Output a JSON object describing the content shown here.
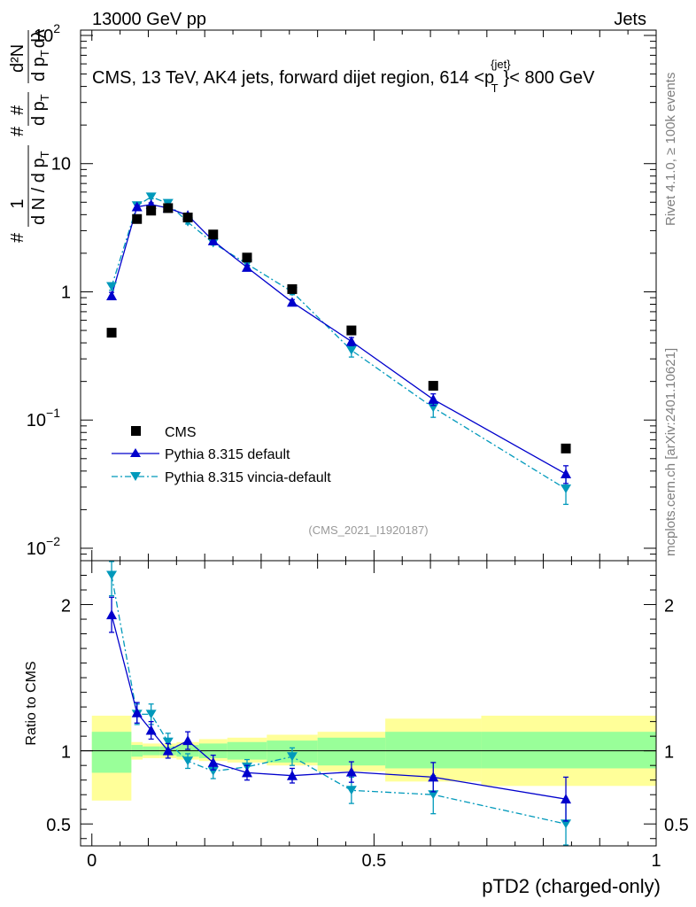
{
  "header": {
    "left": "13000 GeV pp",
    "right": "Jets",
    "title_main": "CMS, 13 TeV, AK4 jets, forward dijet region, 614 <p",
    "title_sup": "{jet}",
    "title_sub": "T",
    "title_end": "}< 800 GeV"
  },
  "side": {
    "rivet": "Rivet 4.1.0, ≥ 100k events",
    "mcplots": "mcplots.cern.ch [arXiv:2401.10621]"
  },
  "watermark": "(CMS_2021_I1920187)",
  "ylabel_main": {
    "h1": "#",
    "f1_num": "1",
    "f1_den": "d N / d p",
    "f1_den_sub": "T",
    "h2": "#",
    "f2_num": "#",
    "f2_den": "d p",
    "f2_den_sub": "T",
    "f3_num": "d²N",
    "f3_den": "d p",
    "f3_den_sub": "T",
    "f3_den_tail": "dλ"
  },
  "ylabel_ratio": "Ratio to CMS",
  "xlabel": "pTD2 (charged-only)",
  "legend": {
    "cms": "CMS",
    "default": "Pythia 8.315 default",
    "vincia": "Pythia 8.315 vincia-default"
  },
  "colors": {
    "data": "#000000",
    "default": "#0000cc",
    "vincia": "#0099bb",
    "band_inner": "#99ff99",
    "band_outer": "#ffff99"
  },
  "chart_data": [
    {
      "type": "scatter",
      "panel": "main",
      "title": "CMS, 13 TeV, AK4 jets, forward dijet region, 614 < pT(jet) < 800 GeV",
      "xlabel": "pTD2 (charged-only)",
      "ylabel": "1/(dN/dpT) d²N/(dpT dλ)",
      "yscale": "log",
      "xlim": [
        -0.02,
        1.0
      ],
      "ylim": [
        0.008,
        110
      ],
      "yticks": [
        0.01,
        0.1,
        1,
        10,
        100
      ],
      "ytick_labels": [
        {
          "m": "10",
          "e": "−2"
        },
        {
          "m": "10",
          "e": "−1"
        },
        {
          "m": "1",
          "e": ""
        },
        {
          "m": "10",
          "e": ""
        },
        {
          "m": "10",
          "e": "2"
        }
      ],
      "x": [
        0.035,
        0.08,
        0.105,
        0.135,
        0.17,
        0.215,
        0.275,
        0.355,
        0.46,
        0.605,
        0.84
      ],
      "series": [
        {
          "name": "CMS",
          "values": [
            0.48,
            3.7,
            4.3,
            4.5,
            3.8,
            2.8,
            1.85,
            1.05,
            0.5,
            0.185,
            0.06
          ]
        },
        {
          "name": "Pythia 8.315 default",
          "values": [
            0.93,
            4.6,
            4.8,
            4.5,
            3.95,
            2.5,
            1.55,
            0.83,
            0.41,
            0.145,
            0.038
          ],
          "errors": [
            0.06,
            0.15,
            0.15,
            0.15,
            0.12,
            0.08,
            0.06,
            0.04,
            0.03,
            0.015,
            0.006
          ]
        },
        {
          "name": "Pythia 8.315 vincia-default",
          "values": [
            1.1,
            4.7,
            5.5,
            4.9,
            3.5,
            2.4,
            1.65,
            1.0,
            0.35,
            0.125,
            0.029
          ],
          "errors": [
            0.07,
            0.15,
            0.18,
            0.16,
            0.12,
            0.08,
            0.07,
            0.05,
            0.04,
            0.02,
            0.007
          ]
        }
      ]
    },
    {
      "type": "scatter",
      "panel": "ratio",
      "ylabel": "Ratio to CMS",
      "xlabel": "pTD2 (charged-only)",
      "xlim": [
        -0.02,
        1.0
      ],
      "ylim": [
        0.35,
        2.3
      ],
      "xticks": [
        0,
        0.5,
        1
      ],
      "xtick_labels": [
        "0",
        "0.5",
        "1"
      ],
      "yticks": [
        0.5,
        1,
        2
      ],
      "ytick_labels": [
        "0.5",
        "1",
        "2"
      ],
      "band_edges": [
        0,
        0.07,
        0.09,
        0.12,
        0.15,
        0.19,
        0.24,
        0.31,
        0.4,
        0.52,
        0.69,
        1.0
      ],
      "band_inner": [
        [
          0.85,
          1.13
        ],
        [
          0.96,
          1.04
        ],
        [
          0.97,
          1.03
        ],
        [
          0.97,
          1.03
        ],
        [
          0.96,
          1.04
        ],
        [
          0.95,
          1.05
        ],
        [
          0.94,
          1.06
        ],
        [
          0.92,
          1.07
        ],
        [
          0.9,
          1.09
        ],
        [
          0.88,
          1.13
        ],
        [
          0.88,
          1.13
        ]
      ],
      "band_outer": [
        [
          0.66,
          1.24
        ],
        [
          0.94,
          1.06
        ],
        [
          0.95,
          1.05
        ],
        [
          0.95,
          1.05
        ],
        [
          0.94,
          1.06
        ],
        [
          0.93,
          1.08
        ],
        [
          0.92,
          1.09
        ],
        [
          0.9,
          1.11
        ],
        [
          0.86,
          1.13
        ],
        [
          0.79,
          1.22
        ],
        [
          0.76,
          1.24
        ]
      ],
      "x": [
        0.035,
        0.08,
        0.105,
        0.135,
        0.17,
        0.215,
        0.275,
        0.355,
        0.46,
        0.605,
        0.84
      ],
      "series": [
        {
          "name": "Pythia 8.315 default",
          "values": [
            1.93,
            1.26,
            1.14,
            1.0,
            1.07,
            0.92,
            0.85,
            0.83,
            0.855,
            0.82,
            0.67
          ],
          "errors": [
            0.12,
            0.07,
            0.06,
            0.05,
            0.06,
            0.05,
            0.05,
            0.05,
            0.07,
            0.1,
            0.15
          ]
        },
        {
          "name": "Pythia 8.315 vincia-default",
          "values": [
            2.2,
            1.25,
            1.25,
            1.06,
            0.93,
            0.86,
            0.89,
            0.96,
            0.73,
            0.7,
            0.5
          ],
          "errors": [
            0.14,
            0.07,
            0.07,
            0.06,
            0.05,
            0.05,
            0.05,
            0.06,
            0.09,
            0.13,
            0.15
          ]
        }
      ]
    }
  ]
}
